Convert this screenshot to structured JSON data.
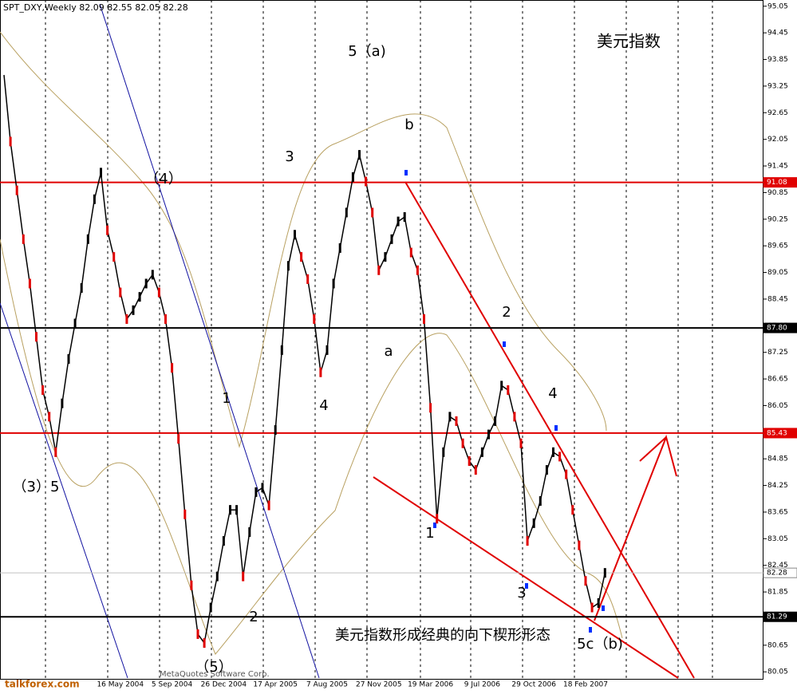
{
  "chart_data": {
    "type": "line",
    "header": "SPT_DXY,Weekly  82.09 82.55 82.05 82.28",
    "title": "美元指数",
    "categories": [
      null,
      null,
      null,
      null,
      null,
      null,
      null,
      null,
      null,
      null,
      null,
      null,
      null,
      null,
      null,
      null,
      null,
      null,
      "16 May 2004",
      null,
      null,
      null,
      null,
      null,
      null,
      null,
      "5 Sep 2004",
      null,
      null,
      null,
      null,
      null,
      null,
      null,
      "26 Dec 2004",
      null,
      null,
      null,
      null,
      null,
      null,
      null,
      "17 Apr 2005",
      null,
      null,
      null,
      null,
      null,
      null,
      null,
      "7 Aug 2005",
      null,
      null,
      null,
      null,
      null,
      null,
      null,
      "27 Nov 2005",
      null,
      null,
      null,
      null,
      null,
      null,
      null,
      "19 Mar 2006",
      null,
      null,
      null,
      null,
      null,
      null,
      null,
      "9 Jul 2006",
      null,
      null,
      null,
      null,
      null,
      null,
      null,
      "29 Oct 2006",
      null,
      null,
      null,
      null,
      null,
      null,
      null,
      "18 Feb 2007",
      null,
      null,
      null
    ],
    "series": [
      {
        "name": "SPT_DXY",
        "color": "#000000",
        "values": [
          93.5,
          92.0,
          90.9,
          89.8,
          88.8,
          87.6,
          86.4,
          85.8,
          85.0,
          86.1,
          87.1,
          87.9,
          88.7,
          89.8,
          90.7,
          91.3,
          90.0,
          89.4,
          88.6,
          88.0,
          88.2,
          88.5,
          88.8,
          89.0,
          88.6,
          88.0,
          86.9,
          85.3,
          83.6,
          82.0,
          80.9,
          80.7,
          81.5,
          82.2,
          83.0,
          83.7,
          83.7,
          82.2,
          83.2,
          84.1,
          84.2,
          83.8,
          85.5,
          87.3,
          89.2,
          89.9,
          89.4,
          88.9,
          88.0,
          86.8,
          87.3,
          88.8,
          89.6,
          90.4,
          91.2,
          91.7,
          91.1,
          90.4,
          89.1,
          89.4,
          89.8,
          90.2,
          90.3,
          89.5,
          89.1,
          88.0,
          86.0,
          83.5,
          85.0,
          85.8,
          85.7,
          85.2,
          84.8,
          84.6,
          85.0,
          85.4,
          85.7,
          86.5,
          86.4,
          85.8,
          85.2,
          83.0,
          83.4,
          83.9,
          84.6,
          85.0,
          84.9,
          84.5,
          83.7,
          82.9,
          82.1,
          81.5,
          81.6,
          82.28
        ]
      }
    ],
    "ylim": [
      80.0,
      95.1
    ],
    "yticks": [
      95.05,
      94.45,
      93.85,
      93.25,
      92.65,
      92.05,
      91.45,
      90.85,
      90.25,
      89.65,
      89.05,
      88.45,
      87.85,
      87.25,
      86.65,
      86.05,
      85.45,
      84.85,
      84.25,
      83.65,
      83.05,
      82.45,
      81.85,
      81.25,
      80.65,
      80.05
    ],
    "levels": [
      {
        "value": 91.08,
        "color": "#e00000"
      },
      {
        "value": 87.8,
        "label": "87.80",
        "color": "#000000"
      },
      {
        "value": 85.43,
        "color": "#e00000"
      },
      {
        "value": 82.28,
        "color": "#c0c0c0"
      },
      {
        "value": 81.29,
        "color": "#000000"
      }
    ],
    "annotations": [
      "5（a)",
      "b",
      "3",
      "（4）",
      "2",
      "a",
      "4",
      "1",
      "4",
      "（3）5",
      "1",
      "3",
      "2",
      "5c（b)",
      "（5）",
      "美元指数形成经典的向下楔形形态"
    ],
    "footer": "MetaQuotes Software Corp.",
    "watermark": "talkforex.com"
  }
}
